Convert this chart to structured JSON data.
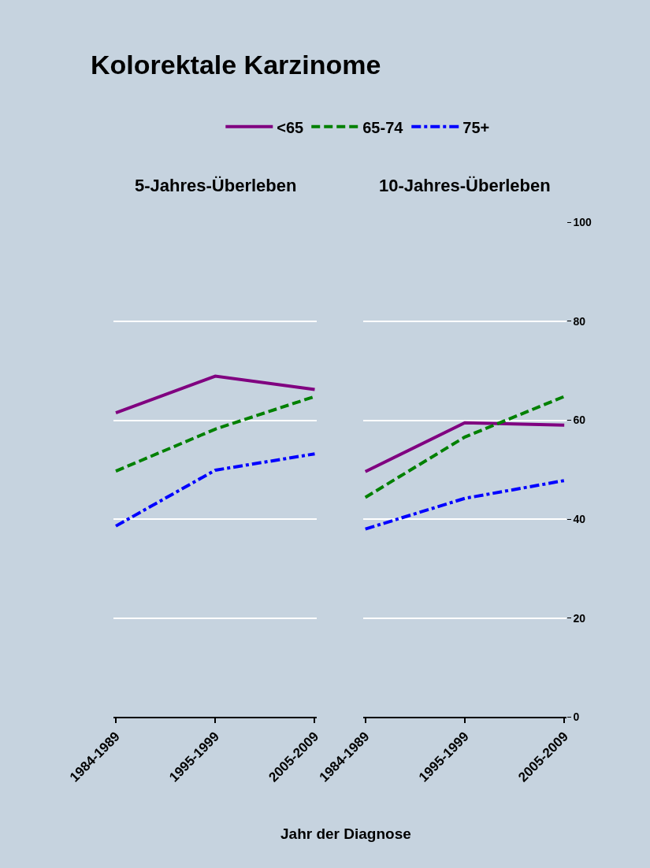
{
  "chart_data": [
    {
      "type": "line",
      "title": "Kolorektale Karzinome",
      "subtitle": "5-Jahres-Überleben",
      "categories": [
        "1984-1989",
        "1995-1999",
        "2005-2009"
      ],
      "ylim": [
        0,
        100
      ],
      "yticks": [
        0,
        20,
        40,
        60,
        80,
        100
      ],
      "grid": "y",
      "legend": "top",
      "tick_labels": "x",
      "series": [
        {
          "name": "<65",
          "color": "#800080",
          "line_style": "solid",
          "values": [
            61.5,
            68.9,
            66.2
          ]
        },
        {
          "name": "65-74",
          "color": "#008000",
          "line_style": "dashed",
          "values": [
            49.7,
            58.2,
            64.8
          ]
        },
        {
          "name": "75+",
          "color": "#0000ff",
          "line_style": "dashdot",
          "values": [
            38.6,
            49.9,
            53.2
          ]
        }
      ]
    },
    {
      "type": "line",
      "subtitle": "10-Jahres-Überleben",
      "xlabel": "Jahr der Diagnose",
      "categories": [
        "1984-1989",
        "1995-1999",
        "2005-2009"
      ],
      "ylim": [
        0,
        100
      ],
      "yticks": [
        0,
        20,
        40,
        60,
        80,
        100
      ],
      "grid": "y",
      "series": [
        {
          "color": "#800080",
          "line_style": "solid",
          "values": [
            49.6,
            59.5,
            59.0
          ]
        },
        {
          "color": "#008000",
          "line_style": "dashed",
          "values": [
            44.4,
            56.6,
            64.8
          ]
        },
        {
          "color": "#0000ff",
          "line_style": "dashdot",
          "values": [
            38.0,
            44.2,
            47.8
          ]
        }
      ]
    }
  ]
}
